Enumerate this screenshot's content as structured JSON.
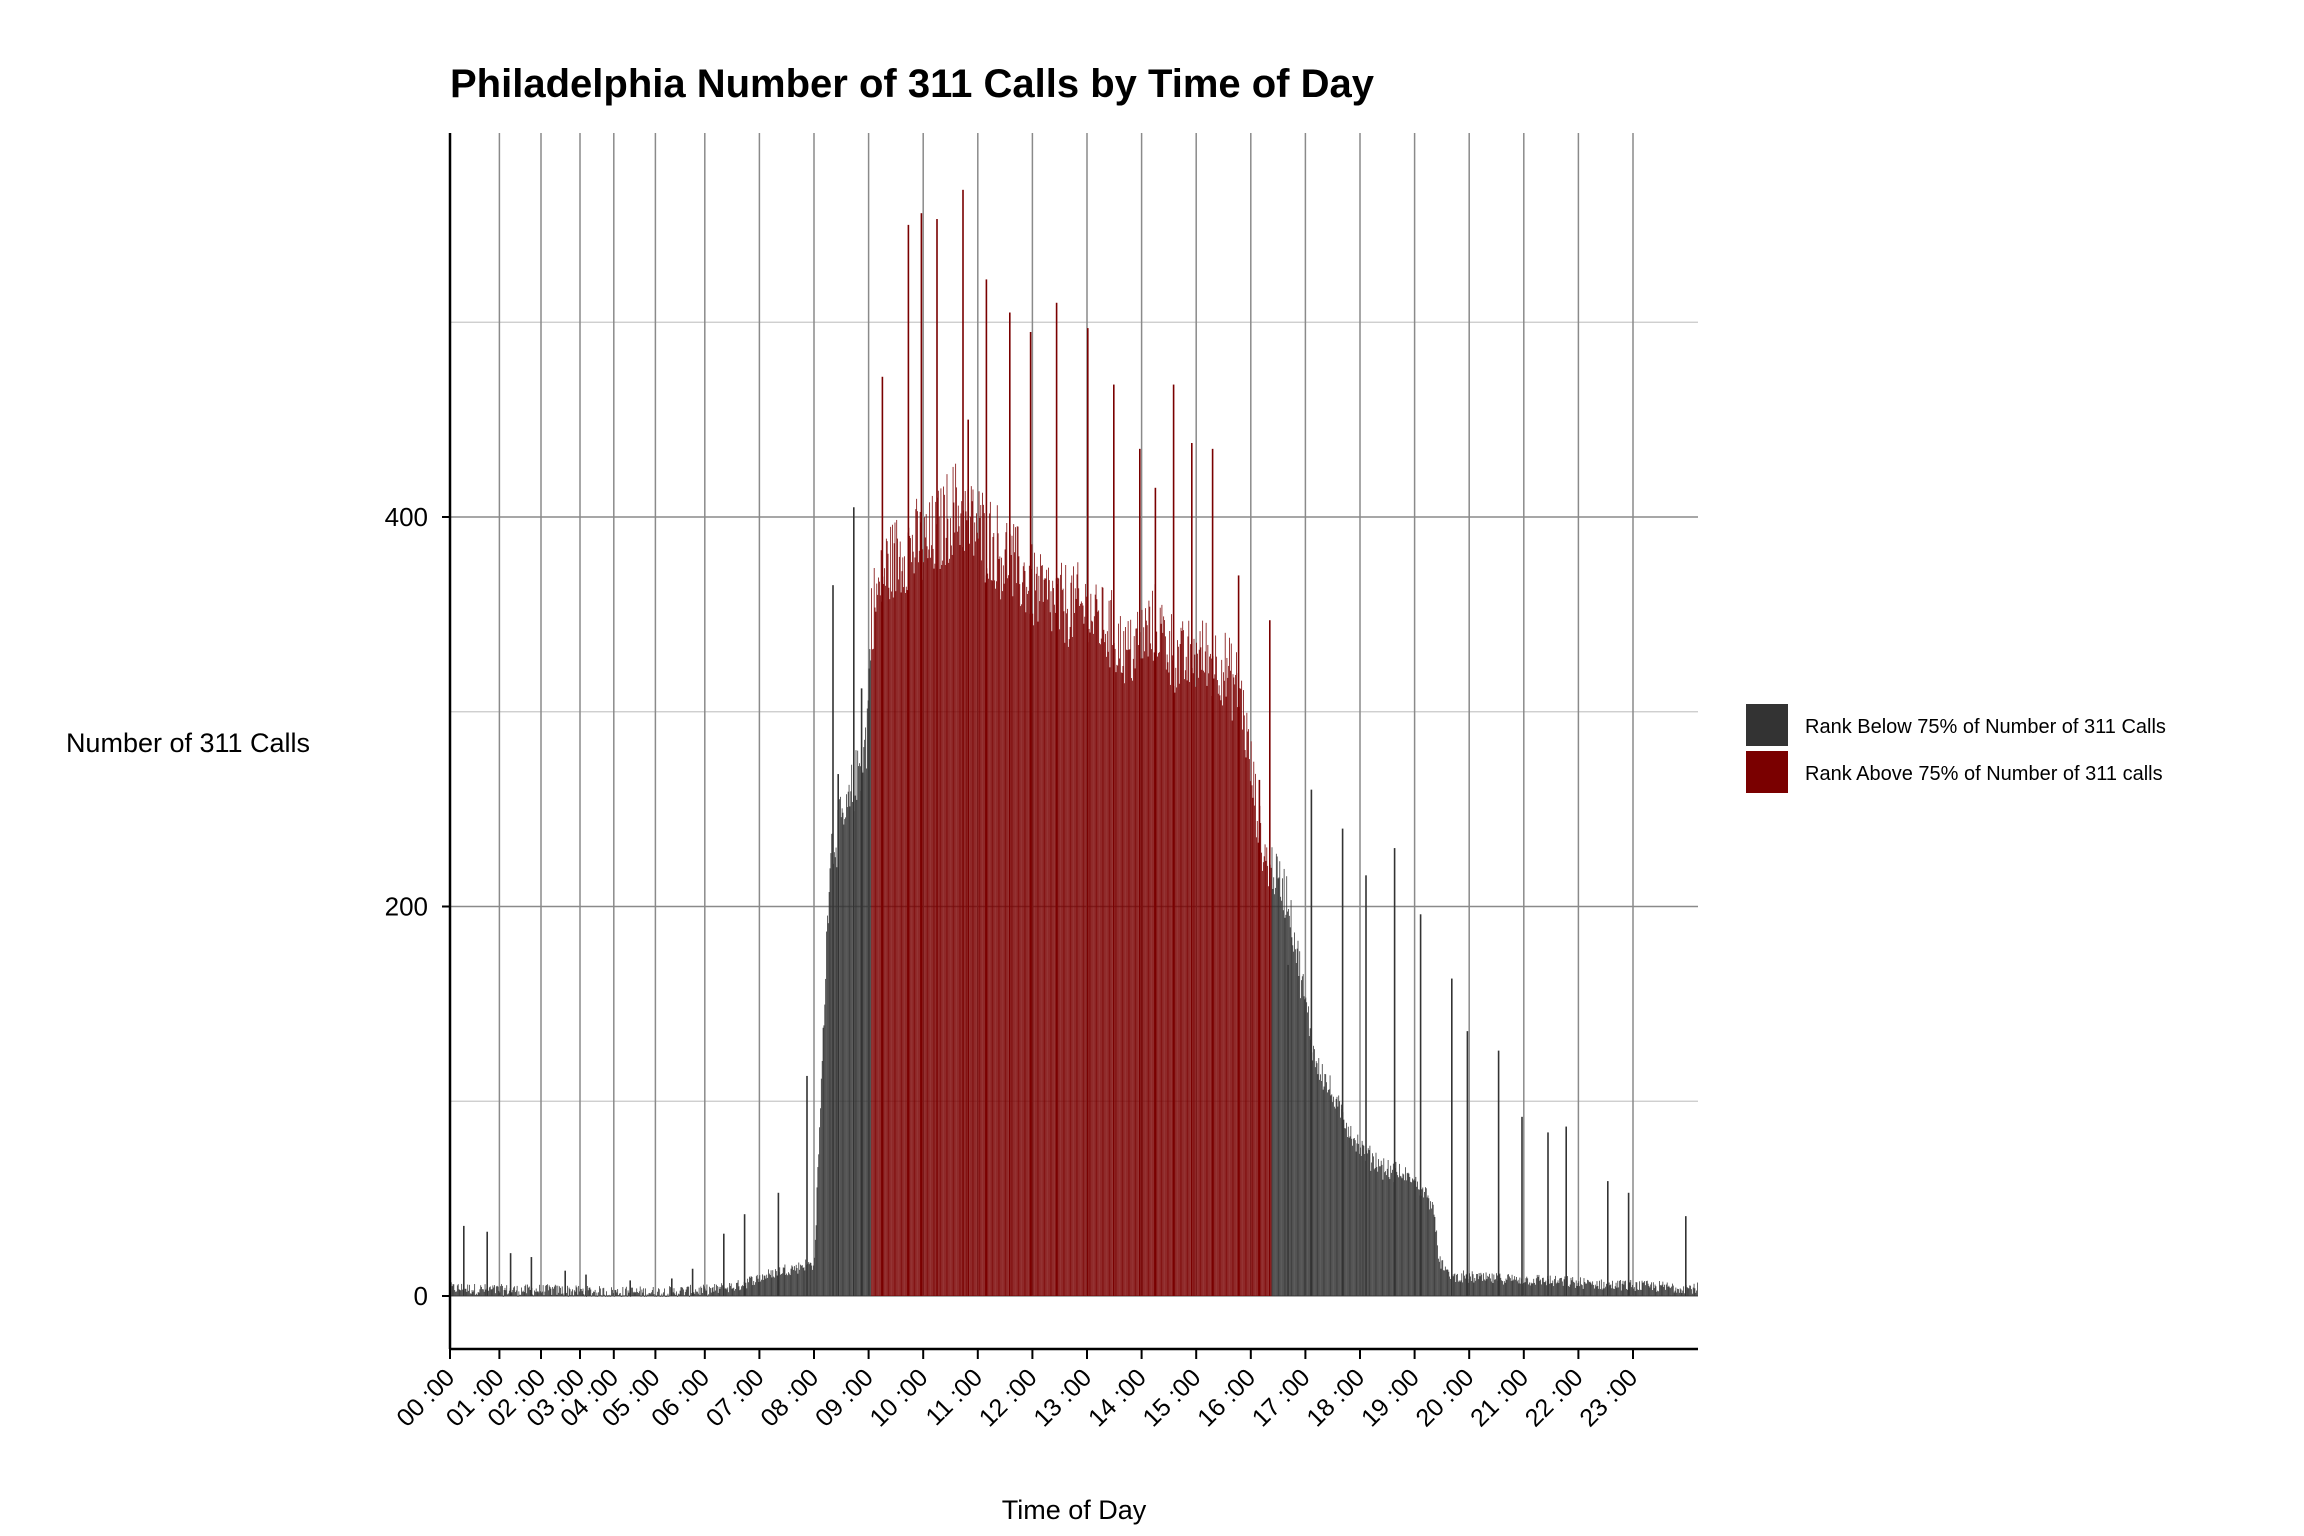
{
  "chart_data": {
    "type": "bar",
    "title": "Philadelphia Number of 311 Calls by Time of  Day",
    "xlabel": "Time of Day",
    "ylabel": "Number of 311 Calls",
    "ylim": [
      -55,
      595
    ],
    "yticks": [
      0,
      200,
      400
    ],
    "minor_gridlines": [
      100,
      300,
      500
    ],
    "x_unit": "hour of day",
    "xlim": [
      0,
      24
    ],
    "xtick_labels": [
      "00 :00",
      "01 :00",
      "02 :00",
      "03 :00",
      "04 :00",
      "05 :00",
      "06 :00",
      "07 :00",
      "08 :00",
      "09 :00",
      "10 :00",
      "11 :00",
      "12 :00",
      "13 :00",
      "14 :00",
      "15 :00",
      "16 :00",
      "17 :00",
      "18 :00",
      "19 :00",
      "20 :00",
      "21 :00",
      "22 :00",
      "23 :00"
    ],
    "xtick_positions": [
      0,
      0.95,
      1.75,
      2.5,
      3.15,
      3.95,
      4.9,
      5.95,
      7.0,
      8.05,
      9.1,
      10.15,
      11.2,
      12.25,
      13.3,
      14.35,
      15.4,
      16.45,
      17.5,
      18.55,
      19.6,
      20.65,
      21.7,
      22.75
    ],
    "grid": true,
    "legend_position": "right",
    "series": [
      {
        "name": "Rank Below 75% of Number of 311 Calls",
        "color": "#333333"
      },
      {
        "name": "Rank Above 75% of Number of 311 calls",
        "color": "#7a0000"
      }
    ],
    "profile": {
      "hours": [
        0.0,
        1.0,
        2.0,
        3.0,
        4.0,
        5.0,
        5.5,
        6.0,
        6.5,
        7.0,
        7.15,
        7.3,
        7.6,
        8.0,
        8.1,
        8.4,
        8.8,
        9.2,
        9.7,
        10.3,
        11.0,
        11.6,
        12.0,
        12.6,
        13.0,
        13.6,
        14.0,
        14.4,
        14.8,
        15.2,
        15.6,
        16.1,
        16.6,
        17.0,
        17.5,
        18.0,
        18.5,
        18.9,
        19.0,
        19.2,
        20.0,
        21.0,
        22.0,
        23.0,
        24.0
      ],
      "calls": [
        4,
        3,
        3,
        2,
        2,
        3,
        5,
        10,
        14,
        17,
        120,
        230,
        245,
        285,
        350,
        375,
        385,
        385,
        405,
        390,
        370,
        355,
        355,
        345,
        330,
        345,
        325,
        330,
        325,
        310,
        230,
        205,
        125,
        100,
        75,
        65,
        60,
        48,
        20,
        10,
        9,
        8,
        6,
        5,
        4
      ]
    },
    "high_rank_range_hours": [
      8.1,
      15.8
    ],
    "spikes": [
      {
        "hour": 0.25,
        "calls": 36
      },
      {
        "hour": 0.7,
        "calls": 33
      },
      {
        "hour": 1.15,
        "calls": 22
      },
      {
        "hour": 1.55,
        "calls": 20
      },
      {
        "hour": 2.2,
        "calls": 13
      },
      {
        "hour": 2.6,
        "calls": 11
      },
      {
        "hour": 3.45,
        "calls": 8
      },
      {
        "hour": 4.25,
        "calls": 9
      },
      {
        "hour": 4.65,
        "calls": 14
      },
      {
        "hour": 5.25,
        "calls": 32
      },
      {
        "hour": 5.65,
        "calls": 42
      },
      {
        "hour": 6.3,
        "calls": 53
      },
      {
        "hour": 6.85,
        "calls": 113
      },
      {
        "hour": 7.35,
        "calls": 365
      },
      {
        "hour": 7.45,
        "calls": 268
      },
      {
        "hour": 7.75,
        "calls": 405
      },
      {
        "hour": 7.9,
        "calls": 312
      },
      {
        "hour": 8.3,
        "calls": 472
      },
      {
        "hour": 8.8,
        "calls": 550
      },
      {
        "hour": 9.05,
        "calls": 556
      },
      {
        "hour": 9.35,
        "calls": 553
      },
      {
        "hour": 9.85,
        "calls": 568
      },
      {
        "hour": 9.95,
        "calls": 450
      },
      {
        "hour": 10.3,
        "calls": 522
      },
      {
        "hour": 10.75,
        "calls": 505
      },
      {
        "hour": 11.15,
        "calls": 495
      },
      {
        "hour": 11.65,
        "calls": 510
      },
      {
        "hour": 12.25,
        "calls": 497
      },
      {
        "hour": 12.75,
        "calls": 468
      },
      {
        "hour": 13.25,
        "calls": 435
      },
      {
        "hour": 13.55,
        "calls": 415
      },
      {
        "hour": 13.9,
        "calls": 468
      },
      {
        "hour": 14.25,
        "calls": 438
      },
      {
        "hour": 14.65,
        "calls": 435
      },
      {
        "hour": 15.15,
        "calls": 370
      },
      {
        "hour": 15.75,
        "calls": 347
      },
      {
        "hour": 15.55,
        "calls": 265
      },
      {
        "hour": 16.1,
        "calls": 170
      },
      {
        "hour": 16.55,
        "calls": 260
      },
      {
        "hour": 17.15,
        "calls": 240
      },
      {
        "hour": 17.6,
        "calls": 216
      },
      {
        "hour": 18.15,
        "calls": 230
      },
      {
        "hour": 18.65,
        "calls": 196
      },
      {
        "hour": 19.25,
        "calls": 163
      },
      {
        "hour": 19.55,
        "calls": 136
      },
      {
        "hour": 20.15,
        "calls": 126
      },
      {
        "hour": 20.6,
        "calls": 92
      },
      {
        "hour": 21.1,
        "calls": 84
      },
      {
        "hour": 21.45,
        "calls": 87
      },
      {
        "hour": 22.25,
        "calls": 59
      },
      {
        "hour": 22.65,
        "calls": 53
      },
      {
        "hour": 23.75,
        "calls": 41
      }
    ]
  }
}
